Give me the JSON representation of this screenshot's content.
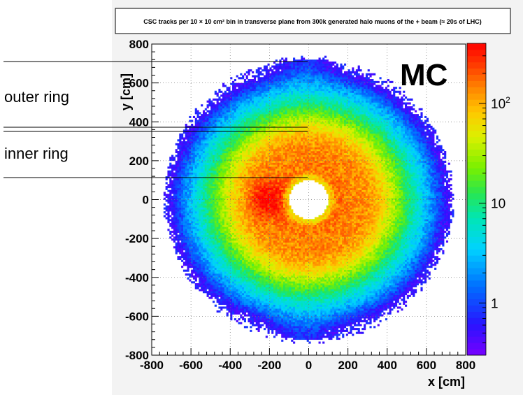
{
  "chart_data": {
    "type": "heatmap",
    "title": "CSC tracks per 10 × 10 cm² bin in transverse plane from 300k generated halo muons of the + beam (≈ 20s of LHC)",
    "xlabel": "x [cm]",
    "ylabel": "y [cm]",
    "xlim": [
      -800,
      800
    ],
    "ylim": [
      -800,
      800
    ],
    "x_ticks": [
      "-800",
      "-600",
      "-400",
      "-200",
      "0",
      "200",
      "400",
      "600",
      "800"
    ],
    "y_ticks": [
      "800",
      "600",
      "400",
      "200",
      "0",
      "-200",
      "-400",
      "-600",
      "-800"
    ],
    "z_scale": "log",
    "z_ticks": [
      "1",
      "10",
      "10²"
    ],
    "z_range": [
      0.3,
      400
    ],
    "bin_size_cm": 10,
    "grid": true,
    "watermark": "MC",
    "structure": {
      "inner_hole_radius": 100,
      "inner_ring": {
        "r_min": 100,
        "r_max": 260
      },
      "outer_ring": {
        "r_min": 270,
        "r_max": 700
      },
      "peak_x": -200,
      "peak_y": 0
    }
  },
  "annotations": [
    {
      "label": "outer ring"
    },
    {
      "label": "inner ring"
    }
  ]
}
